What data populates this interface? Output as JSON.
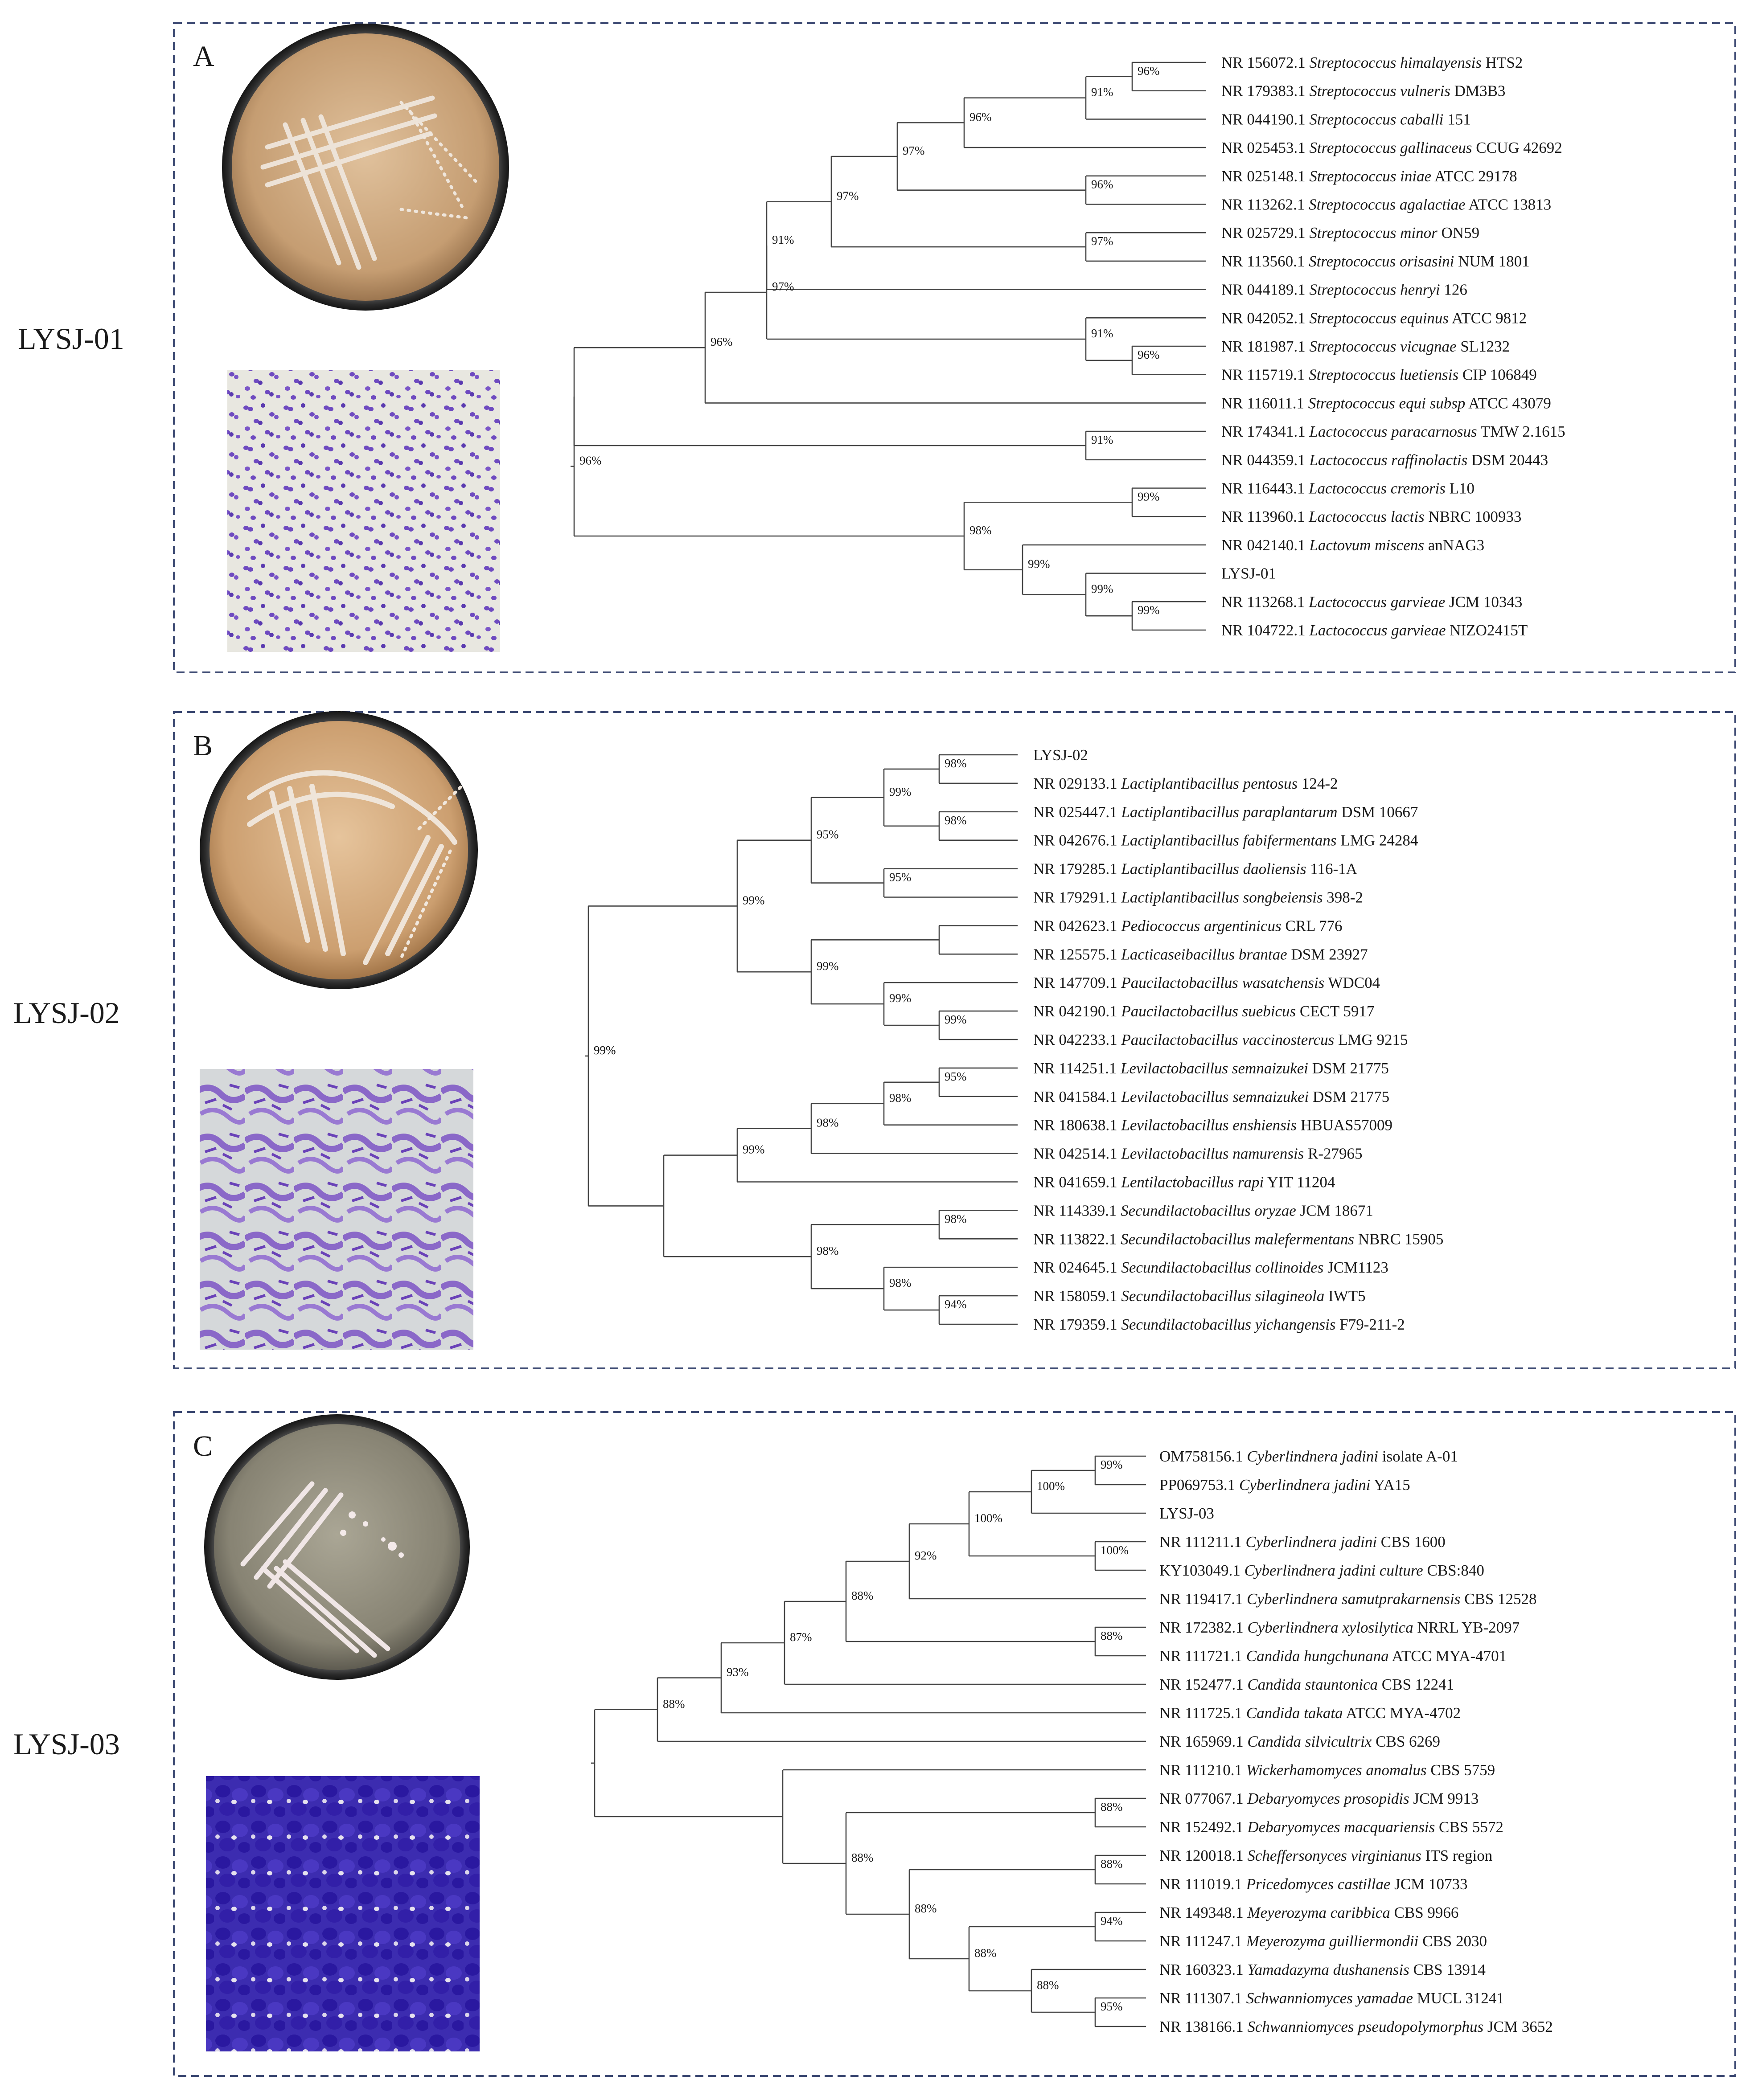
{
  "figure": {
    "panels": [
      {
        "label": "A",
        "strain": "LYSJ-01",
        "tree": {
          "leaves": [
            {
              "acc": "NR 156072.1",
              "sp": "Streptococcus himalayensis",
              "st": "HTS2"
            },
            {
              "acc": "NR 179383.1",
              "sp": "Streptococcus vulneris",
              "st": "DM3B3"
            },
            {
              "acc": "NR 044190.1",
              "sp": "Streptococcus caballi",
              "st": "151"
            },
            {
              "acc": "NR 025453.1",
              "sp": "Streptococcus gallinaceus",
              "st": "CCUG 42692"
            },
            {
              "acc": "NR 025148.1",
              "sp": "Streptococcus iniae",
              "st": "ATCC 29178"
            },
            {
              "acc": "NR 113262.1",
              "sp": "Streptococcus agalactiae",
              "st": "ATCC 13813"
            },
            {
              "acc": "NR 025729.1",
              "sp": "Streptococcus minor",
              "st": "ON59"
            },
            {
              "acc": "NR 113560.1",
              "sp": "Streptococcus orisasini",
              "st": "NUM 1801"
            },
            {
              "acc": "NR 044189.1",
              "sp": "Streptococcus henryi",
              "st": "126"
            },
            {
              "acc": "NR 042052.1",
              "sp": "Streptococcus equinus",
              "st": "ATCC 9812"
            },
            {
              "acc": "NR 181987.1",
              "sp": "Streptococcus vicugnae",
              "st": "SL1232"
            },
            {
              "acc": "NR 115719.1",
              "sp": "Streptococcus luetiensis",
              "st": "CIP 106849"
            },
            {
              "acc": "NR 116011.1",
              "sp": "Streptococcus equi subsp",
              "st": "ATCC 43079"
            },
            {
              "acc": "NR 174341.1",
              "sp": "Lactococcus paracarnosus",
              "st": "TMW 2.1615"
            },
            {
              "acc": "NR 044359.1",
              "sp": "Lactococcus raffinolactis",
              "st": "DSM 20443"
            },
            {
              "acc": "NR 116443.1",
              "sp": "Lactococcus cremoris",
              "st": "L10"
            },
            {
              "acc": "NR 113960.1",
              "sp": "Lactococcus lactis",
              "st": "NBRC 100933"
            },
            {
              "acc": "NR 042140.1",
              "sp": "Lactovum miscens",
              "st": "anNAG3"
            },
            {
              "acc": "LYSJ-01",
              "sp": "",
              "st": ""
            },
            {
              "acc": "NR 113268.1",
              "sp": "Lactococcus garvieae",
              "st": "JCM 10343"
            },
            {
              "acc": "NR 104722.1",
              "sp": "Lactococcus garvieae",
              "st": "NIZO2415T"
            }
          ],
          "bootstrap": [
            "96%",
            "91%",
            "96%",
            "97%",
            "96%",
            "97%",
            "97%",
            "91%",
            "91%",
            "96%",
            "97%",
            "96%",
            "91%",
            "96%",
            "99%",
            "99%",
            "99%",
            "99%",
            "98%"
          ]
        }
      },
      {
        "label": "B",
        "strain": "LYSJ-02",
        "tree": {
          "leaves": [
            {
              "acc": "LYSJ-02",
              "sp": "",
              "st": ""
            },
            {
              "acc": "NR 029133.1",
              "sp": "Lactiplantibacillus pentosus",
              "st": "124-2"
            },
            {
              "acc": "NR 025447.1",
              "sp": "Lactiplantibacillus paraplantarum",
              "st": "DSM 10667"
            },
            {
              "acc": "NR 042676.1",
              "sp": "Lactiplantibacillus fabifermentans",
              "st": "LMG 24284"
            },
            {
              "acc": "NR 179285.1",
              "sp": "Lactiplantibacillus daoliensis",
              "st": "116-1A"
            },
            {
              "acc": "NR 179291.1",
              "sp": "Lactiplantibacillus songbeiensis",
              "st": "398-2"
            },
            {
              "acc": "NR 042623.1",
              "sp": "Pediococcus argentinicus",
              "st": "CRL 776"
            },
            {
              "acc": "NR 125575.1",
              "sp": "Lacticaseibacillus brantae",
              "st": "DSM 23927"
            },
            {
              "acc": "NR 147709.1",
              "sp": "Paucilactobacillus wasatchensis",
              "st": "WDC04"
            },
            {
              "acc": "NR 042190.1",
              "sp": "Paucilactobacillus suebicus",
              "st": "CECT 5917"
            },
            {
              "acc": "NR 042233.1",
              "sp": "Paucilactobacillus vaccinostercus",
              "st": "LMG 9215"
            },
            {
              "acc": "NR 114251.1",
              "sp": "Levilactobacillus semnaizukei",
              "st": "DSM 21775"
            },
            {
              "acc": "NR 041584.1",
              "sp": "Levilactobacillus semnaizukei",
              "st": "DSM 21775"
            },
            {
              "acc": "NR 180638.1",
              "sp": "Levilactobacillus enshiensis",
              "st": "HBUAS57009"
            },
            {
              "acc": "NR 042514.1",
              "sp": "Levilactobacillus namurensis",
              "st": "R-27965"
            },
            {
              "acc": "NR 041659.1",
              "sp": "Lentilactobacillus rapi",
              "st": "YIT 11204"
            },
            {
              "acc": "NR 114339.1",
              "sp": "Secundilactobacillus oryzae",
              "st": "JCM 18671"
            },
            {
              "acc": "NR 113822.1",
              "sp": "Secundilactobacillus malefermentans",
              "st": "NBRC 15905"
            },
            {
              "acc": "NR 024645.1",
              "sp": "Secundilactobacillus collinoides",
              "st": "JCM1123"
            },
            {
              "acc": "NR 158059.1",
              "sp": "Secundilactobacillus silagineola",
              "st": "IWT5"
            },
            {
              "acc": "NR 179359.1",
              "sp": "Secundilactobacillus yichangensis",
              "st": "F79-211-2"
            }
          ],
          "bootstrap": [
            "98%",
            "99%",
            "98%",
            "95%",
            "95%",
            "99%",
            "99%",
            "99%",
            "99%",
            "99%",
            "95%",
            "98%",
            "98%",
            "99%",
            "98%",
            "98%",
            "98%",
            "94%",
            "99%"
          ]
        }
      },
      {
        "label": "C",
        "strain": "LYSJ-03",
        "tree": {
          "leaves": [
            {
              "acc": "OM758156.1",
              "sp": "Cyberlindnera jadini",
              "st": "isolate A-01"
            },
            {
              "acc": "PP069753.1",
              "sp": "Cyberlindnera jadini",
              "st": "YA15"
            },
            {
              "acc": "LYSJ-03",
              "sp": "",
              "st": ""
            },
            {
              "acc": "NR 111211.1",
              "sp": "Cyberlindnera jadini",
              "st": "CBS 1600"
            },
            {
              "acc": "KY103049.1",
              "sp": "Cyberlindnera jadini culture",
              "st": "CBS:840"
            },
            {
              "acc": "NR 119417.1",
              "sp": "Cyberlindnera samutprakarnensis",
              "st": "CBS 12528"
            },
            {
              "acc": "NR 172382.1",
              "sp": "Cyberlindnera xylosilytica",
              "st": "NRRL YB-2097"
            },
            {
              "acc": "NR 111721.1",
              "sp": "Candida hungchunana",
              "st": "ATCC MYA-4701"
            },
            {
              "acc": "NR 152477.1",
              "sp": "Candida stauntonica",
              "st": "CBS 12241"
            },
            {
              "acc": "NR 111725.1",
              "sp": "Candida takata",
              "st": "ATCC MYA-4702"
            },
            {
              "acc": "NR 165969.1",
              "sp": "Candida silvicultrix",
              "st": "CBS 6269"
            },
            {
              "acc": "NR 111210.1",
              "sp": "Wickerhamomyces anomalus",
              "st": "CBS 5759"
            },
            {
              "acc": "NR 077067.1",
              "sp": "Debaryomyces prosopidis",
              "st": "JCM 9913"
            },
            {
              "acc": "NR 152492.1",
              "sp": "Debaryomyces macquariensis",
              "st": "CBS 5572"
            },
            {
              "acc": "NR 120018.1",
              "sp": "Scheffersonyces virginianus",
              "st": "ITS region"
            },
            {
              "acc": "NR 111019.1",
              "sp": "Pricedomyces castillae",
              "st": "JCM 10733"
            },
            {
              "acc": "NR 149348.1",
              "sp": "Meyerozyma caribbica",
              "st": "CBS 9966"
            },
            {
              "acc": "NR 111247.1",
              "sp": "Meyerozyma guilliermondii",
              "st": "CBS 2030"
            },
            {
              "acc": "NR 160323.1",
              "sp": "Yamadazyma dushanensis",
              "st": "CBS 13914"
            },
            {
              "acc": "NR 111307.1",
              "sp": "Schwanniomyces yamadae",
              "st": "MUCL 31241"
            },
            {
              "acc": "NR 138166.1",
              "sp": "Schwanniomyces pseudopolymorphus",
              "st": "JCM 3652"
            }
          ],
          "bootstrap": [
            "99%",
            "100%",
            "100%",
            "100%",
            "92%",
            "88%",
            "88%",
            "87%",
            "93%",
            "88%",
            "88%",
            "88%",
            "94%",
            "88%",
            "88%",
            "88%",
            "88%",
            "95%"
          ]
        }
      }
    ],
    "colors": {
      "frame": "#3d4a73",
      "branch": "#444444",
      "plate_rim": "#2b2b2b",
      "agar_A": "#c9a47a",
      "agar_B": "#d1a878",
      "agar_C": "#8e8a7c",
      "stain_light": "#7a4cc4",
      "stain_dark": "#3a1aa0"
    }
  }
}
